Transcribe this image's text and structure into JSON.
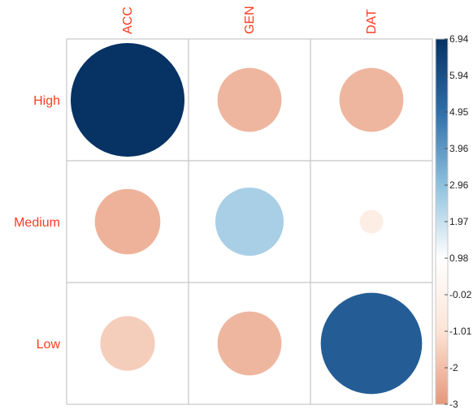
{
  "chart_data": {
    "type": "heatmap",
    "style": "circle-correlation-matrix",
    "rows": [
      "High",
      "Medium",
      "Low"
    ],
    "columns": [
      "ACC",
      "GEN",
      "DAT"
    ],
    "values": [
      [
        6.94,
        -2.2,
        -2.2
      ],
      [
        -2.3,
        2.5,
        -0.3
      ],
      [
        -1.6,
        -2.2,
        5.5
      ]
    ],
    "colorbar": {
      "ticks": [
        "6.94",
        "5.94",
        "4.95",
        "3.96",
        "2.96",
        "1.97",
        "0.98",
        "-0.02",
        "-1.01",
        "-2",
        "-3"
      ],
      "range": [
        -3,
        6.94
      ],
      "colors": [
        "#e6977a",
        "#fce4d6",
        "#ffffff",
        "#8fc1de",
        "#2f6ea8",
        "#063264"
      ]
    },
    "grid": true,
    "title": "",
    "xlabel": "",
    "ylabel": ""
  }
}
